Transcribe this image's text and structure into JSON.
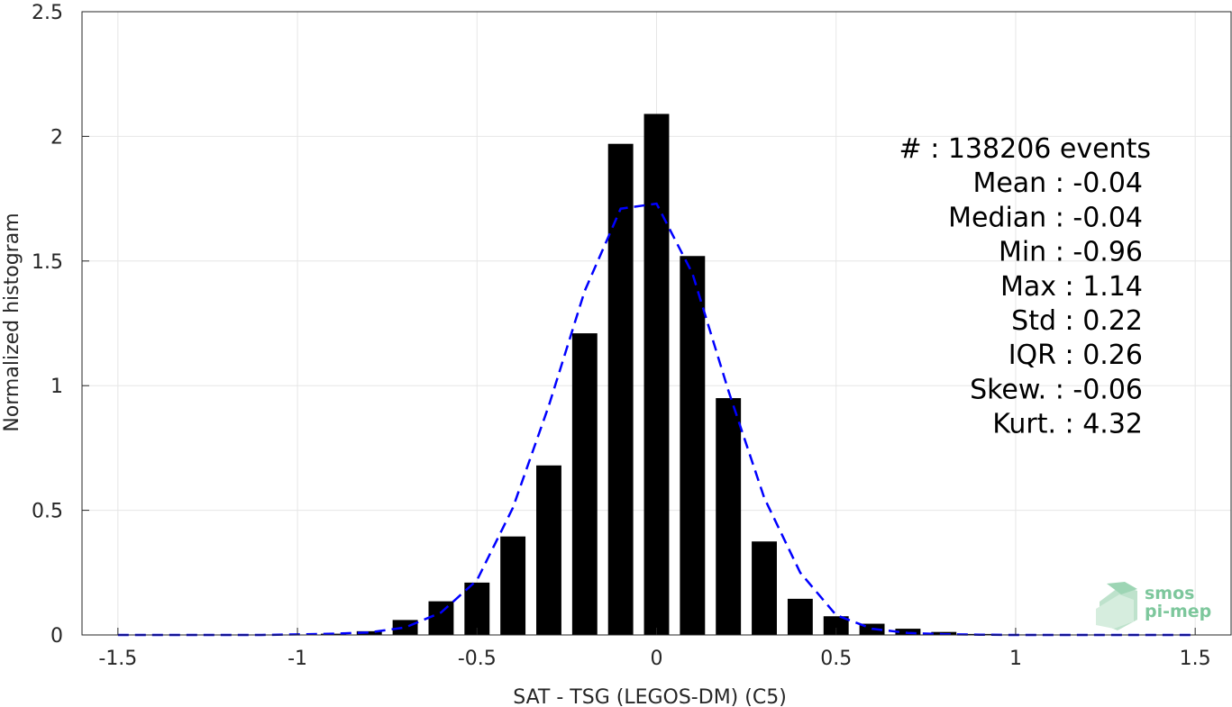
{
  "chart_data": {
    "type": "bar",
    "xlabel": "SAT - TSG (LEGOS-DM) (C5)",
    "ylabel": "Normalized histogram",
    "xlim": [
      -1.6,
      1.6
    ],
    "ylim": [
      0,
      2.5
    ],
    "xticks": [
      -1.5,
      -1,
      -0.5,
      0,
      0.5,
      1,
      1.5
    ],
    "xtick_labels": [
      "-1.5",
      "-1",
      "-0.5",
      "0",
      "0.5",
      "1",
      "1.5"
    ],
    "yticks": [
      0,
      0.5,
      1,
      1.5,
      2,
      2.5
    ],
    "ytick_labels": [
      "0",
      "0.5",
      "1",
      "1.5",
      "2",
      "2.5"
    ],
    "grid": true,
    "bar_width": 0.07,
    "bar_color": "#000000",
    "x": [
      -0.9,
      -0.8,
      -0.7,
      -0.6,
      -0.5,
      -0.4,
      -0.3,
      -0.2,
      -0.1,
      0.0,
      0.1,
      0.2,
      0.3,
      0.4,
      0.5,
      0.6,
      0.7,
      0.8,
      0.9,
      1.0
    ],
    "values": [
      0.005,
      0.015,
      0.06,
      0.135,
      0.21,
      0.395,
      0.68,
      1.21,
      1.97,
      2.09,
      1.52,
      0.95,
      0.375,
      0.145,
      0.075,
      0.045,
      0.025,
      0.012,
      0.004,
      0.002
    ],
    "fit_line": {
      "color": "#0000ff",
      "style": "dashed",
      "x": [
        -1.5,
        -1.4,
        -1.3,
        -1.2,
        -1.1,
        -1.0,
        -0.9,
        -0.8,
        -0.7,
        -0.6,
        -0.5,
        -0.4,
        -0.3,
        -0.2,
        -0.1,
        0.0,
        0.1,
        0.2,
        0.3,
        0.4,
        0.5,
        0.6,
        0.7,
        0.8,
        0.9,
        1.0,
        1.1,
        1.2,
        1.3,
        1.4,
        1.5
      ],
      "y": [
        0,
        0,
        0,
        0,
        0,
        0.002,
        0.005,
        0.01,
        0.03,
        0.09,
        0.22,
        0.51,
        0.92,
        1.38,
        1.71,
        1.73,
        1.45,
        0.98,
        0.55,
        0.25,
        0.08,
        0.025,
        0.008,
        0.003,
        0.001,
        0,
        0,
        0,
        0,
        0,
        0
      ]
    },
    "annotations": [
      {
        "label": "#  :",
        "value": "138206 events"
      },
      {
        "label": "Mean :",
        "value": "-0.04"
      },
      {
        "label": "Median :",
        "value": "-0.04"
      },
      {
        "label": "Min :",
        "value": "-0.96"
      },
      {
        "label": "Max :",
        "value": "1.14"
      },
      {
        "label": "Std :",
        "value": "0.22"
      },
      {
        "label": "IQR :",
        "value": "0.26"
      },
      {
        "label": "Skew. :",
        "value": "-0.06"
      },
      {
        "label": "Kurt. :",
        "value": "4.32"
      }
    ]
  },
  "logo": {
    "line1": "smos",
    "line2": "pi-mep"
  }
}
